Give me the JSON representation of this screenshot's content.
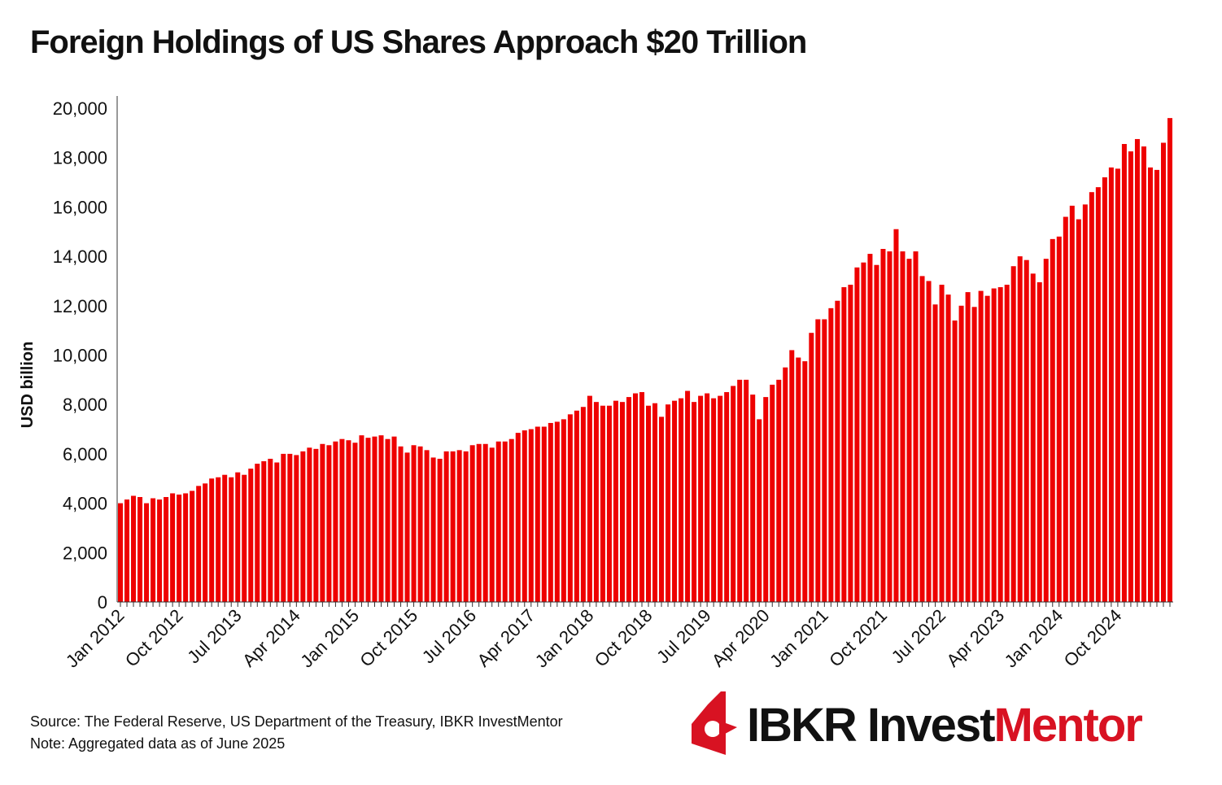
{
  "title": "Foreign Holdings of US Shares Approach $20 Trillion",
  "notes": {
    "source": "Source: The Federal Reserve, US Department of the Treasury, IBKR InvestMentor",
    "note": "Note: Aggregated data as of June 2025"
  },
  "logo": {
    "brand": "IBKR Invest",
    "accent": "Mentor"
  },
  "colors": {
    "bar": "#ee0000",
    "accent": "#d81222"
  },
  "chart_data": {
    "type": "bar",
    "title": "Foreign Holdings of US Shares Approach $20 Trillion",
    "xlabel": "",
    "ylabel": "USD billion",
    "ylim": [
      0,
      20000
    ],
    "yticks": [
      0,
      2000,
      4000,
      6000,
      8000,
      10000,
      12000,
      14000,
      16000,
      18000,
      20000
    ],
    "ytick_labels": [
      "0",
      "2,000",
      "4,000",
      "6,000",
      "8,000",
      "10,000",
      "12,000",
      "14,000",
      "16,000",
      "18,000",
      "20,000"
    ],
    "grid": false,
    "x_start": "Jan 2012",
    "x_end": "Jun 2025",
    "frequency": "monthly",
    "xtick_labels": [
      {
        "label": "Jan 2012",
        "index": 0
      },
      {
        "label": "Oct 2012",
        "index": 9
      },
      {
        "label": "Jul 2013",
        "index": 18
      },
      {
        "label": "Apr 2014",
        "index": 27
      },
      {
        "label": "Jan 2015",
        "index": 36
      },
      {
        "label": "Oct 2015",
        "index": 45
      },
      {
        "label": "Jul 2016",
        "index": 54
      },
      {
        "label": "Apr 2017",
        "index": 63
      },
      {
        "label": "Jan 2018",
        "index": 72
      },
      {
        "label": "Oct 2018",
        "index": 81
      },
      {
        "label": "Jul 2019",
        "index": 90
      },
      {
        "label": "Apr 2020",
        "index": 99
      },
      {
        "label": "Jan 2021",
        "index": 108
      },
      {
        "label": "Oct 2021",
        "index": 117
      },
      {
        "label": "Jul 2022",
        "index": 126
      },
      {
        "label": "Apr 2023",
        "index": 135
      },
      {
        "label": "Jan 2024",
        "index": 144
      },
      {
        "label": "Oct 2024",
        "index": 153
      }
    ],
    "values": [
      4000,
      4150,
      4300,
      4250,
      4000,
      4200,
      4150,
      4250,
      4400,
      4350,
      4400,
      4500,
      4700,
      4800,
      5000,
      5050,
      5150,
      5050,
      5250,
      5150,
      5400,
      5600,
      5700,
      5800,
      5650,
      6000,
      6000,
      5950,
      6100,
      6250,
      6200,
      6400,
      6350,
      6500,
      6600,
      6550,
      6450,
      6750,
      6650,
      6700,
      6750,
      6600,
      6700,
      6300,
      6050,
      6350,
      6300,
      6150,
      5850,
      5800,
      6100,
      6100,
      6150,
      6100,
      6350,
      6400,
      6400,
      6250,
      6500,
      6500,
      6600,
      6850,
      6950,
      7000,
      7100,
      7100,
      7250,
      7300,
      7400,
      7600,
      7750,
      7900,
      8350,
      8100,
      7950,
      7950,
      8150,
      8100,
      8300,
      8450,
      8500,
      7950,
      8050,
      7500,
      8000,
      8150,
      8250,
      8550,
      8100,
      8350,
      8450,
      8250,
      8350,
      8500,
      8750,
      9000,
      9000,
      8400,
      7400,
      8300,
      8800,
      9000,
      9500,
      10200,
      9900,
      9750,
      10900,
      11450,
      11450,
      11900,
      12200,
      12750,
      12850,
      13550,
      13750,
      14100,
      13650,
      14300,
      14200,
      15100,
      14200,
      13900,
      14200,
      13200,
      13000,
      12050,
      12850,
      12450,
      11400,
      12000,
      12550,
      11950,
      12600,
      12400,
      12700,
      12750,
      12850,
      13600,
      14000,
      13850,
      13300,
      12950,
      13900,
      14700,
      14800,
      15600,
      16050,
      15500,
      16100,
      16600,
      16800,
      17200,
      17600,
      17550,
      18550,
      18250,
      18750,
      18450,
      17600,
      17500,
      18600,
      19600
    ]
  }
}
